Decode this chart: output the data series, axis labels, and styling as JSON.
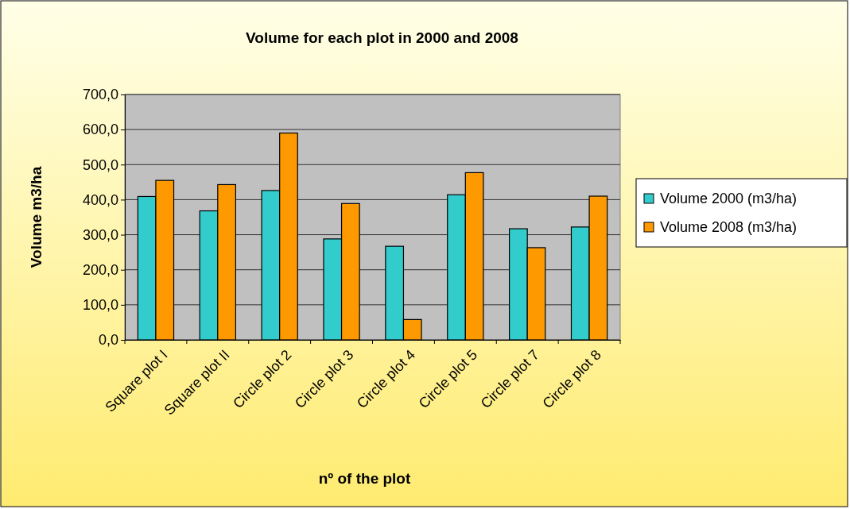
{
  "chart_data": {
    "type": "bar",
    "title": "Volume for each plot in 2000 and 2008",
    "xlabel": "nº of the plot",
    "ylabel": "Volume m3/ha",
    "categories": [
      "Square plot I",
      "Square plot II",
      "Circle plot 2",
      "Circle plot 3",
      "Circle plot 4",
      "Circle plot 5",
      "Circle plot 7",
      "Circle plot 8"
    ],
    "series": [
      {
        "name": "Volume 2000 (m3/ha)",
        "color": "#33cccc",
        "values": [
          409,
          368,
          426,
          288,
          267,
          414,
          317,
          322
        ]
      },
      {
        "name": "Volume 2008 (m3/ha)",
        "color": "#ff9900",
        "values": [
          455,
          443,
          590,
          389,
          58,
          477,
          263,
          410
        ]
      }
    ],
    "ylim": [
      0,
      700
    ],
    "yticks": [
      {
        "value": 0,
        "label": "0,0"
      },
      {
        "value": 100,
        "label": "100,0"
      },
      {
        "value": 200,
        "label": "200,0"
      },
      {
        "value": 300,
        "label": "300,0"
      },
      {
        "value": 400,
        "label": "400,0"
      },
      {
        "value": 500,
        "label": "500,0"
      },
      {
        "value": 600,
        "label": "600,0"
      },
      {
        "value": 700,
        "label": "700,0"
      }
    ],
    "grid": "y",
    "legend": "right"
  }
}
